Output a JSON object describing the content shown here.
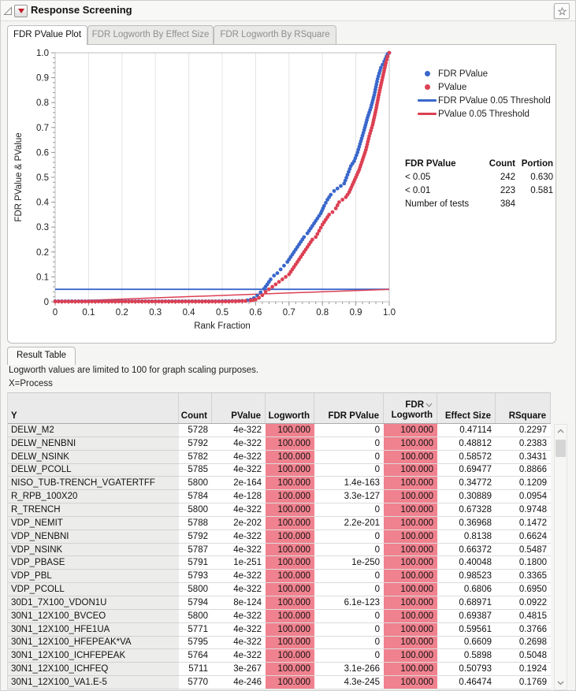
{
  "window": {
    "title": "Response Screening"
  },
  "icons": {
    "disclosure": "open-triangle",
    "menu": "red-triangle-down",
    "pin": "layered-star",
    "sort": "chevron-down",
    "scroll_up": "chevron-up",
    "scroll_down": "chevron-down"
  },
  "tabs": [
    {
      "label": "FDR PValue Plot",
      "active": true
    },
    {
      "label": "FDR Logworth By Effect Size",
      "active": false
    },
    {
      "label": "FDR Logworth By RSquare",
      "active": false
    }
  ],
  "chart_data": {
    "type": "scatter",
    "title": "",
    "xlabel": "Rank Fraction",
    "ylabel": "FDR PValue & PValue",
    "xlim": [
      0,
      1.0
    ],
    "ylim": [
      0,
      1.0
    ],
    "grid": "vertical-only",
    "legend_position": "top-right-outside",
    "xticks": [
      0,
      0.1,
      0.2,
      0.3,
      0.4,
      0.5,
      0.6,
      0.7,
      0.8,
      0.9,
      1.0
    ],
    "xtick_labels": [
      "0",
      "0.1",
      "0.2",
      "0.3",
      "0.4",
      "0.5",
      "0.6",
      "0.7",
      "0.8",
      "0.9",
      "1.0"
    ],
    "yticks": [
      0,
      0.1,
      0.2,
      0.3,
      0.4,
      0.5,
      0.6,
      0.7,
      0.8,
      0.9,
      1.0
    ],
    "ytick_labels": [
      "0",
      "0.1",
      "0.2",
      "0.3",
      "0.4",
      "0.5",
      "0.6",
      "0.7",
      "0.8",
      "0.9",
      "1.0"
    ],
    "minor_tick_step": 0.02,
    "series": [
      {
        "name": "FDR PValue",
        "kind": "scatter",
        "color": "#3a67cb",
        "points": [
          [
            0,
            0.002
          ],
          [
            0.03,
            0.002
          ],
          [
            0.06,
            0.002
          ],
          [
            0.09,
            0.002
          ],
          [
            0.12,
            0.002
          ],
          [
            0.15,
            0.002
          ],
          [
            0.18,
            0.002
          ],
          [
            0.21,
            0.002
          ],
          [
            0.24,
            0.002
          ],
          [
            0.27,
            0.002
          ],
          [
            0.3,
            0.002
          ],
          [
            0.33,
            0.002
          ],
          [
            0.36,
            0.002
          ],
          [
            0.39,
            0.002
          ],
          [
            0.42,
            0.002
          ],
          [
            0.45,
            0.002
          ],
          [
            0.48,
            0.002
          ],
          [
            0.51,
            0.003
          ],
          [
            0.54,
            0.003
          ],
          [
            0.56,
            0.004
          ],
          [
            0.575,
            0.006
          ],
          [
            0.585,
            0.009
          ],
          [
            0.595,
            0.015
          ],
          [
            0.605,
            0.025
          ],
          [
            0.615,
            0.038
          ],
          [
            0.625,
            0.052
          ],
          [
            0.635,
            0.07
          ],
          [
            0.645,
            0.09
          ],
          [
            0.655,
            0.105
          ],
          [
            0.665,
            0.115
          ],
          [
            0.675,
            0.13
          ],
          [
            0.685,
            0.145
          ],
          [
            0.695,
            0.16
          ],
          [
            0.705,
            0.18
          ],
          [
            0.715,
            0.2
          ],
          [
            0.725,
            0.22
          ],
          [
            0.735,
            0.24
          ],
          [
            0.745,
            0.26
          ],
          [
            0.755,
            0.275
          ],
          [
            0.765,
            0.295
          ],
          [
            0.775,
            0.315
          ],
          [
            0.785,
            0.335
          ],
          [
            0.795,
            0.355
          ],
          [
            0.805,
            0.385
          ],
          [
            0.815,
            0.41
          ],
          [
            0.825,
            0.43
          ],
          [
            0.835,
            0.445
          ],
          [
            0.845,
            0.455
          ],
          [
            0.855,
            0.465
          ],
          [
            0.865,
            0.475
          ],
          [
            0.875,
            0.51
          ],
          [
            0.885,
            0.545
          ],
          [
            0.895,
            0.565
          ],
          [
            0.905,
            0.6
          ],
          [
            0.915,
            0.645
          ],
          [
            0.925,
            0.69
          ],
          [
            0.935,
            0.74
          ],
          [
            0.945,
            0.78
          ],
          [
            0.955,
            0.83
          ],
          [
            0.965,
            0.895
          ],
          [
            0.975,
            0.94
          ],
          [
            0.985,
            0.965
          ],
          [
            0.995,
            0.995
          ],
          [
            1,
            1
          ]
        ]
      },
      {
        "name": "PValue",
        "kind": "scatter",
        "color": "#dc4053",
        "points": [
          [
            0,
            0.001
          ],
          [
            0.03,
            0.001
          ],
          [
            0.06,
            0.001
          ],
          [
            0.09,
            0.001
          ],
          [
            0.12,
            0.001
          ],
          [
            0.15,
            0.001
          ],
          [
            0.18,
            0.001
          ],
          [
            0.21,
            0.001
          ],
          [
            0.24,
            0.001
          ],
          [
            0.27,
            0.001
          ],
          [
            0.3,
            0.001
          ],
          [
            0.33,
            0.001
          ],
          [
            0.36,
            0.001
          ],
          [
            0.39,
            0.001
          ],
          [
            0.42,
            0.001
          ],
          [
            0.45,
            0.001
          ],
          [
            0.48,
            0.001
          ],
          [
            0.51,
            0.001
          ],
          [
            0.54,
            0.002
          ],
          [
            0.57,
            0.003
          ],
          [
            0.585,
            0.005
          ],
          [
            0.6,
            0.009
          ],
          [
            0.61,
            0.016
          ],
          [
            0.62,
            0.026
          ],
          [
            0.63,
            0.04
          ],
          [
            0.64,
            0.05
          ],
          [
            0.65,
            0.06
          ],
          [
            0.66,
            0.07
          ],
          [
            0.67,
            0.08
          ],
          [
            0.68,
            0.09
          ],
          [
            0.69,
            0.1
          ],
          [
            0.7,
            0.11
          ],
          [
            0.71,
            0.13
          ],
          [
            0.72,
            0.15
          ],
          [
            0.73,
            0.17
          ],
          [
            0.74,
            0.19
          ],
          [
            0.75,
            0.21
          ],
          [
            0.76,
            0.23
          ],
          [
            0.77,
            0.25
          ],
          [
            0.78,
            0.26
          ],
          [
            0.79,
            0.285
          ],
          [
            0.8,
            0.31
          ],
          [
            0.81,
            0.33
          ],
          [
            0.82,
            0.35
          ],
          [
            0.83,
            0.36
          ],
          [
            0.84,
            0.375
          ],
          [
            0.85,
            0.4
          ],
          [
            0.86,
            0.41
          ],
          [
            0.87,
            0.42
          ],
          [
            0.88,
            0.44
          ],
          [
            0.89,
            0.47
          ],
          [
            0.9,
            0.5
          ],
          [
            0.91,
            0.53
          ],
          [
            0.92,
            0.57
          ],
          [
            0.93,
            0.61
          ],
          [
            0.94,
            0.665
          ],
          [
            0.95,
            0.71
          ],
          [
            0.96,
            0.77
          ],
          [
            0.97,
            0.84
          ],
          [
            0.975,
            0.87
          ],
          [
            0.98,
            0.9
          ],
          [
            0.985,
            0.93
          ],
          [
            0.99,
            0.96
          ],
          [
            0.995,
            0.985
          ],
          [
            1,
            1
          ]
        ]
      },
      {
        "name": "FDR PValue 0.05 Threshold",
        "kind": "line",
        "color": "#3a67cb",
        "points": [
          [
            0,
            0.05
          ],
          [
            1,
            0.05
          ]
        ]
      },
      {
        "name": "PValue 0.05 Threshold",
        "kind": "line",
        "color": "#dc4053",
        "points": [
          [
            0,
            0.001
          ],
          [
            1,
            0.05
          ]
        ]
      }
    ]
  },
  "stats_table": {
    "headers": [
      "FDR PValue",
      "Count",
      "Portion"
    ],
    "rows": [
      {
        "label": "< 0.05",
        "count": "242",
        "portion": "0.630"
      },
      {
        "label": "< 0.01",
        "count": "223",
        "portion": "0.581"
      },
      {
        "label": "Number of tests",
        "count": "384",
        "portion": ""
      }
    ]
  },
  "result_section": {
    "tab_label": "Result Table",
    "note_1": "Logworth values are limited to 100 for graph scaling purposes.",
    "note_2": "X=Process"
  },
  "result_table": {
    "headers": [
      "Y",
      "Count",
      "PValue",
      "Logworth",
      "FDR PValue",
      "FDR Logworth",
      "Effect Size",
      "RSquare"
    ],
    "header_lines": [
      [
        "Y"
      ],
      [
        "Count"
      ],
      [
        "PValue"
      ],
      [
        "Logworth"
      ],
      [
        "FDR PValue"
      ],
      [
        "FDR",
        "Logworth"
      ],
      [
        "Effect Size"
      ],
      [
        "RSquare"
      ]
    ],
    "sorted_by": "FDR Logworth",
    "sort_direction": "descending",
    "highlight_columns": [
      3,
      5
    ],
    "highlight_value": "100.000",
    "highlight_color": "#f0818e",
    "rows": [
      [
        "DELW_M2",
        "5728",
        "4e-322",
        "100.000",
        "0",
        "100.000",
        "0.47114",
        "0.2297"
      ],
      [
        "DELW_NENBNI",
        "5792",
        "4e-322",
        "100.000",
        "0",
        "100.000",
        "0.48812",
        "0.2383"
      ],
      [
        "DELW_NSINK",
        "5782",
        "4e-322",
        "100.000",
        "0",
        "100.000",
        "0.58572",
        "0.3431"
      ],
      [
        "DELW_PCOLL",
        "5785",
        "4e-322",
        "100.000",
        "0",
        "100.000",
        "0.69477",
        "0.8866"
      ],
      [
        "NISO_TUB-TRENCH_VGATERTFF",
        "5800",
        "2e-164",
        "100.000",
        "1.4e-163",
        "100.000",
        "0.34772",
        "0.1209"
      ],
      [
        "R_RPB_100X20",
        "5784",
        "4e-128",
        "100.000",
        "3.3e-127",
        "100.000",
        "0.30889",
        "0.0954"
      ],
      [
        "R_TRENCH",
        "5800",
        "4e-322",
        "100.000",
        "0",
        "100.000",
        "0.67328",
        "0.9748"
      ],
      [
        "VDP_NEMIT",
        "5788",
        "2e-202",
        "100.000",
        "2.2e-201",
        "100.000",
        "0.36968",
        "0.1472"
      ],
      [
        "VDP_NENBNI",
        "5792",
        "4e-322",
        "100.000",
        "0",
        "100.000",
        "0.8138",
        "0.6624"
      ],
      [
        "VDP_NSINK",
        "5787",
        "4e-322",
        "100.000",
        "0",
        "100.000",
        "0.66372",
        "0.5487"
      ],
      [
        "VDP_PBASE",
        "5791",
        "1e-251",
        "100.000",
        "1e-250",
        "100.000",
        "0.40048",
        "0.1800"
      ],
      [
        "VDP_PBL",
        "5793",
        "4e-322",
        "100.000",
        "0",
        "100.000",
        "0.98523",
        "0.3365"
      ],
      [
        "VDP_PCOLL",
        "5800",
        "4e-322",
        "100.000",
        "0",
        "100.000",
        "0.6806",
        "0.6950"
      ],
      [
        "30D1_7X100_VDON1U",
        "5794",
        "8e-124",
        "100.000",
        "6.1e-123",
        "100.000",
        "0.68971",
        "0.0922"
      ],
      [
        "30N1_12X100_BVCEO",
        "5800",
        "4e-322",
        "100.000",
        "0",
        "100.000",
        "0.69387",
        "0.4815"
      ],
      [
        "30N1_12X100_HFE1UA",
        "5771",
        "4e-322",
        "100.000",
        "0",
        "100.000",
        "0.59561",
        "0.3766"
      ],
      [
        "30N1_12X100_HFEPEAK*VA",
        "5795",
        "4e-322",
        "100.000",
        "0",
        "100.000",
        "0.6609",
        "0.2698"
      ],
      [
        "30N1_12X100_ICHFEPEAK",
        "5764",
        "4e-322",
        "100.000",
        "0",
        "100.000",
        "0.5898",
        "0.5048"
      ],
      [
        "30N1_12X100_ICHFEQ",
        "5711",
        "3e-267",
        "100.000",
        "3.1e-266",
        "100.000",
        "0.50793",
        "0.1924"
      ],
      [
        "30N1_12X100_VA1.E-5",
        "5770",
        "4e-246",
        "100.000",
        "4.3e-245",
        "100.000",
        "0.46474",
        "0.1769"
      ]
    ]
  }
}
